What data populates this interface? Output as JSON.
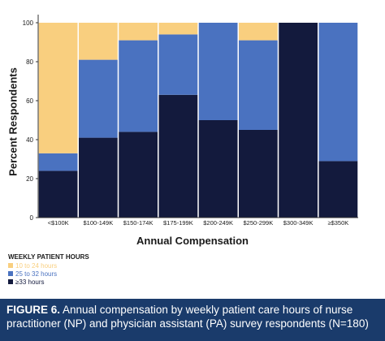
{
  "colors": {
    "low": "#f9cf7f",
    "mid": "#4a72c0",
    "high": "#131a3d",
    "caption_bg": "#1a3b6b"
  },
  "chart_data": {
    "type": "bar",
    "stacked": true,
    "ylabel": "Percent Respondents",
    "xlabel": "Annual Compensation",
    "ylim": [
      0,
      100
    ],
    "yticks": [
      0,
      20,
      40,
      60,
      80,
      100
    ],
    "categories": [
      "<$100K",
      "$100-149K",
      "$150-174K",
      "$175-199K",
      "$200-249K",
      "$250-299K",
      "$300-349K",
      "≥$350K"
    ],
    "series": [
      {
        "name": "≥33 hours",
        "color": "#131a3d",
        "values": [
          24,
          41,
          44,
          63,
          50,
          45,
          100,
          29
        ]
      },
      {
        "name": "25 to 32 hours",
        "color": "#4a72c0",
        "values": [
          9,
          40,
          47,
          31,
          50,
          46,
          0,
          71
        ]
      },
      {
        "name": "10 to 24 hours",
        "color": "#f9cf7f",
        "values": [
          67,
          19,
          9,
          6,
          0,
          9,
          0,
          0
        ]
      }
    ],
    "legend": {
      "title": "WEEKLY PATIENT HOURS",
      "placement": "bottom-left",
      "items": [
        "10 to 24 hours",
        "25 to 32 hours",
        "≥33 hours"
      ]
    },
    "grid": false
  },
  "caption": {
    "label": "FIGURE 6.",
    "text": " Annual compensation by weekly patient care hours of nurse practitioner (NP) and physician assistant (PA) survey respondents (N=180)"
  }
}
